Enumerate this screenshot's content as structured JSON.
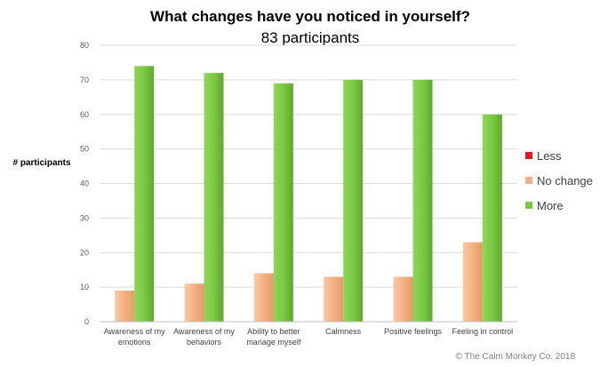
{
  "chart_data": {
    "type": "bar",
    "title": "What changes have you noticed in yourself?",
    "subtitle": "83 participants",
    "ylabel": "# participants",
    "xlabel": "",
    "ylim": [
      0,
      80
    ],
    "yticks": [
      0,
      10,
      20,
      30,
      40,
      50,
      60,
      70,
      80
    ],
    "grid": true,
    "legend_position": "right",
    "categories": [
      [
        "Awareness of my",
        "emotions"
      ],
      [
        "Awareness of my",
        "behaviors"
      ],
      [
        "Ability to better",
        "manage myself"
      ],
      [
        "Calmness"
      ],
      [
        "Positive feelings"
      ],
      [
        "Feeling in control"
      ]
    ],
    "series": [
      {
        "name": "Less",
        "color": "#e31a1c",
        "values": [
          0,
          0,
          0,
          0,
          0,
          0
        ]
      },
      {
        "name": "No change",
        "color": "#f4b183",
        "values": [
          9,
          11,
          14,
          13,
          13,
          23
        ]
      },
      {
        "name": "More",
        "color": "#7ac943",
        "values": [
          74,
          72,
          69,
          70,
          70,
          60
        ]
      }
    ]
  },
  "footer": {
    "copyright": "© The Calm Monkey Co. 2018"
  }
}
